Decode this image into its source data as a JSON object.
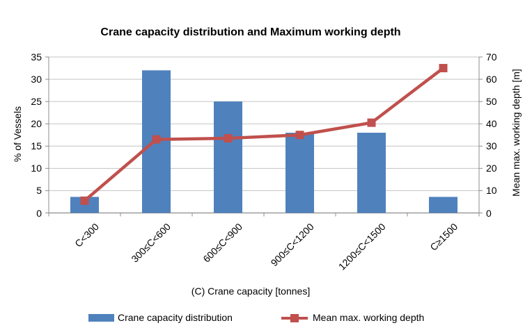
{
  "chart_data": {
    "type": "bar",
    "subtype": "combo-bar-line",
    "title": "Crane capacity distribution and Maximum working depth",
    "categories": [
      "C<300",
      "300≤C<600",
      "600≤C<900",
      "900≤C<1200",
      "1200≤C<1500",
      "C≥1500"
    ],
    "series": [
      {
        "name": "Crane capacity distribution",
        "kind": "bar",
        "axis": "left",
        "color": "#4F81BD",
        "values": [
          3.6,
          32,
          25,
          18,
          18,
          3.6
        ]
      },
      {
        "name": "Mean max. working depth",
        "kind": "line",
        "axis": "right",
        "color": "#C0504D",
        "marker": "square",
        "values": [
          5.5,
          33,
          33.5,
          35,
          40.5,
          65
        ]
      }
    ],
    "xlabel": "(C) Crane capacity [tonnes]",
    "ylabel_left": "% of Vessels",
    "ylabel_right": "Mean max. working depth [m]",
    "ylim_left": [
      0,
      35
    ],
    "ylim_right": [
      0,
      70
    ],
    "yticks_left": [
      0,
      5,
      10,
      15,
      20,
      25,
      30,
      35
    ],
    "yticks_right": [
      0,
      10,
      20,
      30,
      40,
      50,
      60,
      70
    ],
    "grid": true,
    "legend_position": "bottom",
    "colors": {
      "bar": "#4F81BD",
      "line": "#C0504D",
      "gridline": "#C3C3C3",
      "axis": "#8C8C8C",
      "text": "#000000",
      "background": "#FFFFFF"
    }
  }
}
